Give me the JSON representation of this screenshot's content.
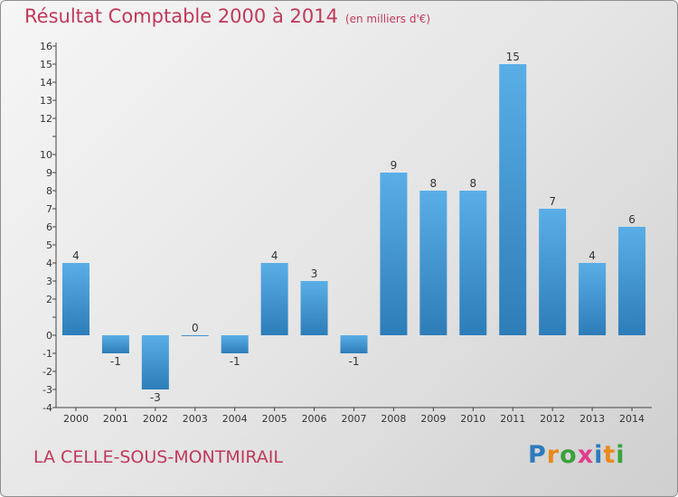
{
  "header": {
    "title": "Résultat Comptable 2000 à 2014",
    "unit": "(en milliers d'€)"
  },
  "footer": {
    "place": "LA CELLE-SOUS-MONTMIRAIL",
    "brand": "Proxiti"
  },
  "colors": {
    "title": "#c0395a",
    "bar_light": "#5aaee6",
    "bar_dark": "#2d7db8",
    "axis": "#444444",
    "brand_letters": [
      "#2e7bbd",
      "#e88a1a",
      "#3aa23a",
      "#e03c8e",
      "#2e7bbd",
      "#e88a1a",
      "#3aa23a"
    ]
  },
  "chart_data": {
    "type": "bar",
    "categories": [
      "2000",
      "2001",
      "2002",
      "2003",
      "2004",
      "2005",
      "2006",
      "2007",
      "2008",
      "2009",
      "2010",
      "2011",
      "2012",
      "2013",
      "2014"
    ],
    "values": [
      4,
      -1,
      -3,
      0,
      -1,
      4,
      3,
      -1,
      9,
      8,
      8,
      15,
      7,
      4,
      6
    ],
    "ylim": [
      -4,
      16
    ],
    "yticks": [
      -4,
      -3,
      -2,
      -1,
      0,
      1,
      2,
      3,
      4,
      5,
      6,
      7,
      8,
      9,
      10,
      11,
      12,
      13,
      14,
      15,
      16
    ],
    "ytick_labels": [
      "-4",
      "-3",
      "-2",
      "-1",
      "0",
      "",
      "2",
      "3",
      "4",
      "5",
      "6",
      "7",
      "8",
      "9",
      "10",
      "",
      "12",
      "13",
      "14",
      "15",
      "16"
    ],
    "grid": false
  }
}
